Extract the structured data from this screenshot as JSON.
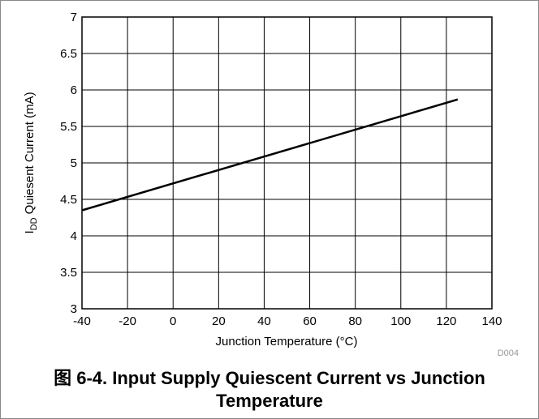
{
  "chart_data": {
    "type": "line",
    "x_label": "Junction Temperature (°C)",
    "y_label": {
      "main": "I",
      "subscript": "DD",
      "rest": " Quiesent Current (mA)"
    },
    "note": "D004",
    "caption": "图 6-4. Input Supply Quiescent Current vs Junction Temperature",
    "x": [
      -40,
      125
    ],
    "series": [
      {
        "color": "#000000",
        "values": [
          4.35,
          5.87
        ]
      }
    ],
    "xlim": [
      -40,
      140
    ],
    "xticks": [
      -40,
      -20,
      0,
      20,
      40,
      60,
      80,
      100,
      120,
      140
    ],
    "ylim": [
      3,
      7
    ],
    "yticks": [
      3,
      3.5,
      4,
      4.5,
      5,
      5.5,
      6,
      6.5,
      7
    ],
    "grid": true
  }
}
